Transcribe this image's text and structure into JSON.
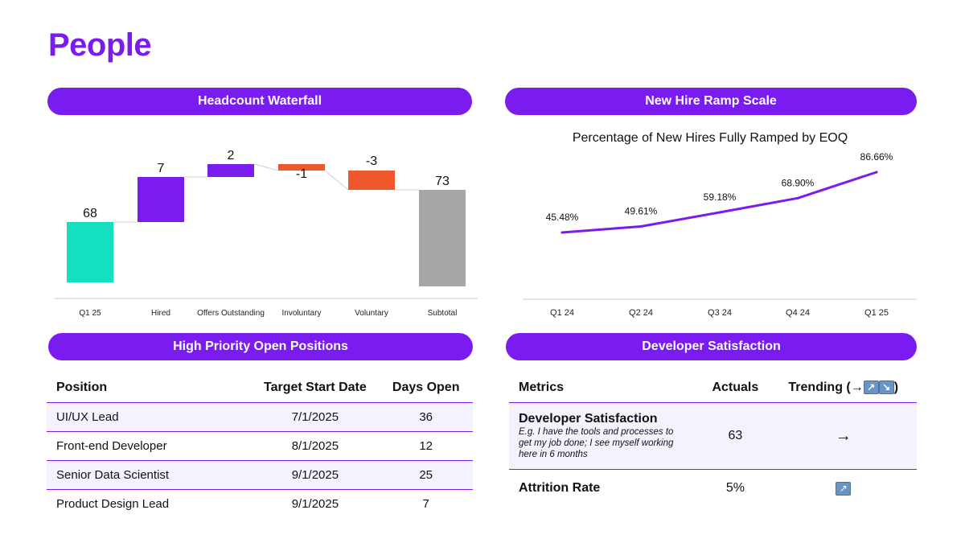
{
  "page": {
    "title": "People"
  },
  "panels": {
    "headcount": "Headcount Waterfall",
    "ramp": "New Hire Ramp Scale",
    "positions": "High Priority Open Positions",
    "devsat": "Developer Satisfaction"
  },
  "colors": {
    "accent": "#7a1cf0",
    "start": "#14e0bf",
    "negative": "#f0572a",
    "subtotal": "#a6a6a6"
  },
  "chart_data": [
    {
      "type": "bar",
      "subtype": "waterfall",
      "title": "Headcount Waterfall",
      "categories": [
        "Q1 25",
        "Hired",
        "Offers Outstanding",
        "Involuntary",
        "Voluntary",
        "Subtotal"
      ],
      "values": [
        68,
        7,
        2,
        -1,
        -3,
        73
      ],
      "labels": [
        "68",
        "7",
        "2",
        "-1",
        "-3",
        "73"
      ],
      "kinds": [
        "total",
        "delta",
        "delta",
        "delta",
        "delta",
        "total"
      ]
    },
    {
      "type": "line",
      "title": "Percentage of New Hires Fully Ramped by EOQ",
      "categories": [
        "Q1 24",
        "Q2 24",
        "Q3 24",
        "Q4 24",
        "Q1 25"
      ],
      "values": [
        45.48,
        49.61,
        59.18,
        68.9,
        86.66
      ],
      "labels": [
        "45.48%",
        "49.61%",
        "59.18%",
        "68.90%",
        "86.66%"
      ],
      "ylim": [
        0,
        100
      ]
    }
  ],
  "positions": {
    "headers": [
      "Position",
      "Target Start Date",
      "Days Open"
    ],
    "rows": [
      [
        "UI/UX Lead",
        "7/1/2025",
        "36"
      ],
      [
        "Front-end Developer",
        "8/1/2025",
        "12"
      ],
      [
        "Senior Data Scientist",
        "9/1/2025",
        "25"
      ],
      [
        "Product Design Lead",
        "9/1/2025",
        "7"
      ]
    ]
  },
  "devsat": {
    "headers": [
      "Metrics",
      "Actuals",
      "Trending (→"
    ],
    "header_suffix": ")",
    "rows": [
      {
        "name": "Developer Satisfaction",
        "desc": "E.g. I have the tools and processes to get my job done; I see myself working here in 6 months",
        "actual": "63",
        "trend": "→"
      },
      {
        "name": "Attrition Rate",
        "desc": "",
        "actual": "5%",
        "trend": "↗"
      }
    ]
  }
}
